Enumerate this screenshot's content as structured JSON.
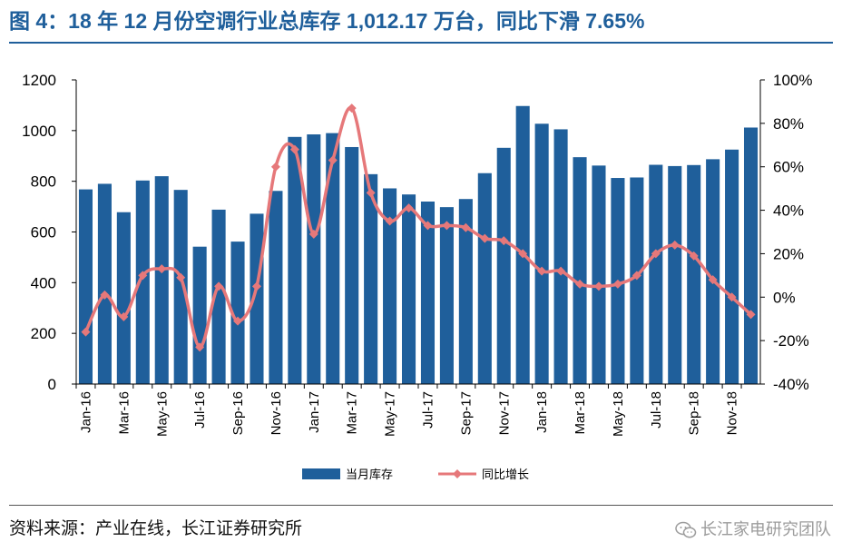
{
  "title": "图 4：18 年 12 月份空调行业总库存 1,012.17 万台，同比下滑 7.65%",
  "source": "资料来源：产业在线，长江证券研究所",
  "watermark": "长江家电研究团队",
  "colors": {
    "bar": "#1f5f9b",
    "line": "#e6787a",
    "title": "#1f5f9b"
  },
  "chart_data": {
    "type": "bar",
    "categories": [
      "Jan-16",
      "Feb-16",
      "Mar-16",
      "Apr-16",
      "May-16",
      "Jun-16",
      "Jul-16",
      "Aug-16",
      "Sep-16",
      "Oct-16",
      "Nov-16",
      "Dec-16",
      "Jan-17",
      "Feb-17",
      "Mar-17",
      "Apr-17",
      "May-17",
      "Jun-17",
      "Jul-17",
      "Aug-17",
      "Sep-17",
      "Oct-17",
      "Nov-17",
      "Dec-17",
      "Jan-18",
      "Feb-18",
      "Mar-18",
      "Apr-18",
      "May-18",
      "Jun-18",
      "Jul-18",
      "Aug-18",
      "Sep-18",
      "Oct-18",
      "Nov-18",
      "Dec-18"
    ],
    "x_tick_labels": [
      "Jan-16",
      "Mar-16",
      "May-16",
      "Jul-16",
      "Sep-16",
      "Nov-16",
      "Jan-17",
      "Mar-17",
      "May-17",
      "Jul-17",
      "Sep-17",
      "Nov-17",
      "Jan-18",
      "Mar-18",
      "May-18",
      "Jul-18",
      "Sep-18",
      "Nov-18"
    ],
    "y_ticks": [
      "0",
      "200",
      "400",
      "600",
      "800",
      "1000",
      "1200"
    ],
    "y2_ticks": [
      "-40%",
      "-20%",
      "0%",
      "20%",
      "40%",
      "60%",
      "80%",
      "100%"
    ],
    "ylim": [
      0,
      1200
    ],
    "y2lim": [
      -40,
      100
    ],
    "series": [
      {
        "name": "当月库存",
        "type": "bar",
        "axis": "left",
        "values": [
          768,
          790,
          678,
          803,
          820,
          766,
          542,
          688,
          562,
          672,
          762,
          975,
          985,
          990,
          935,
          828,
          772,
          748,
          720,
          698,
          730,
          832,
          932,
          1097,
          1027,
          1005,
          895,
          862,
          813,
          815,
          865,
          860,
          864,
          887,
          925,
          1012
        ]
      },
      {
        "name": "同比增长",
        "type": "line",
        "axis": "right",
        "values": [
          -16,
          1,
          -9,
          10,
          13,
          9,
          -23,
          5,
          -11,
          5,
          60,
          68,
          29,
          63,
          87,
          48,
          35,
          41,
          33,
          33,
          32,
          27,
          26,
          20,
          12,
          12,
          6,
          5,
          6,
          10,
          20,
          24,
          19,
          8,
          0,
          -8
        ]
      }
    ],
    "grid": false,
    "legend": "bottom-center"
  }
}
